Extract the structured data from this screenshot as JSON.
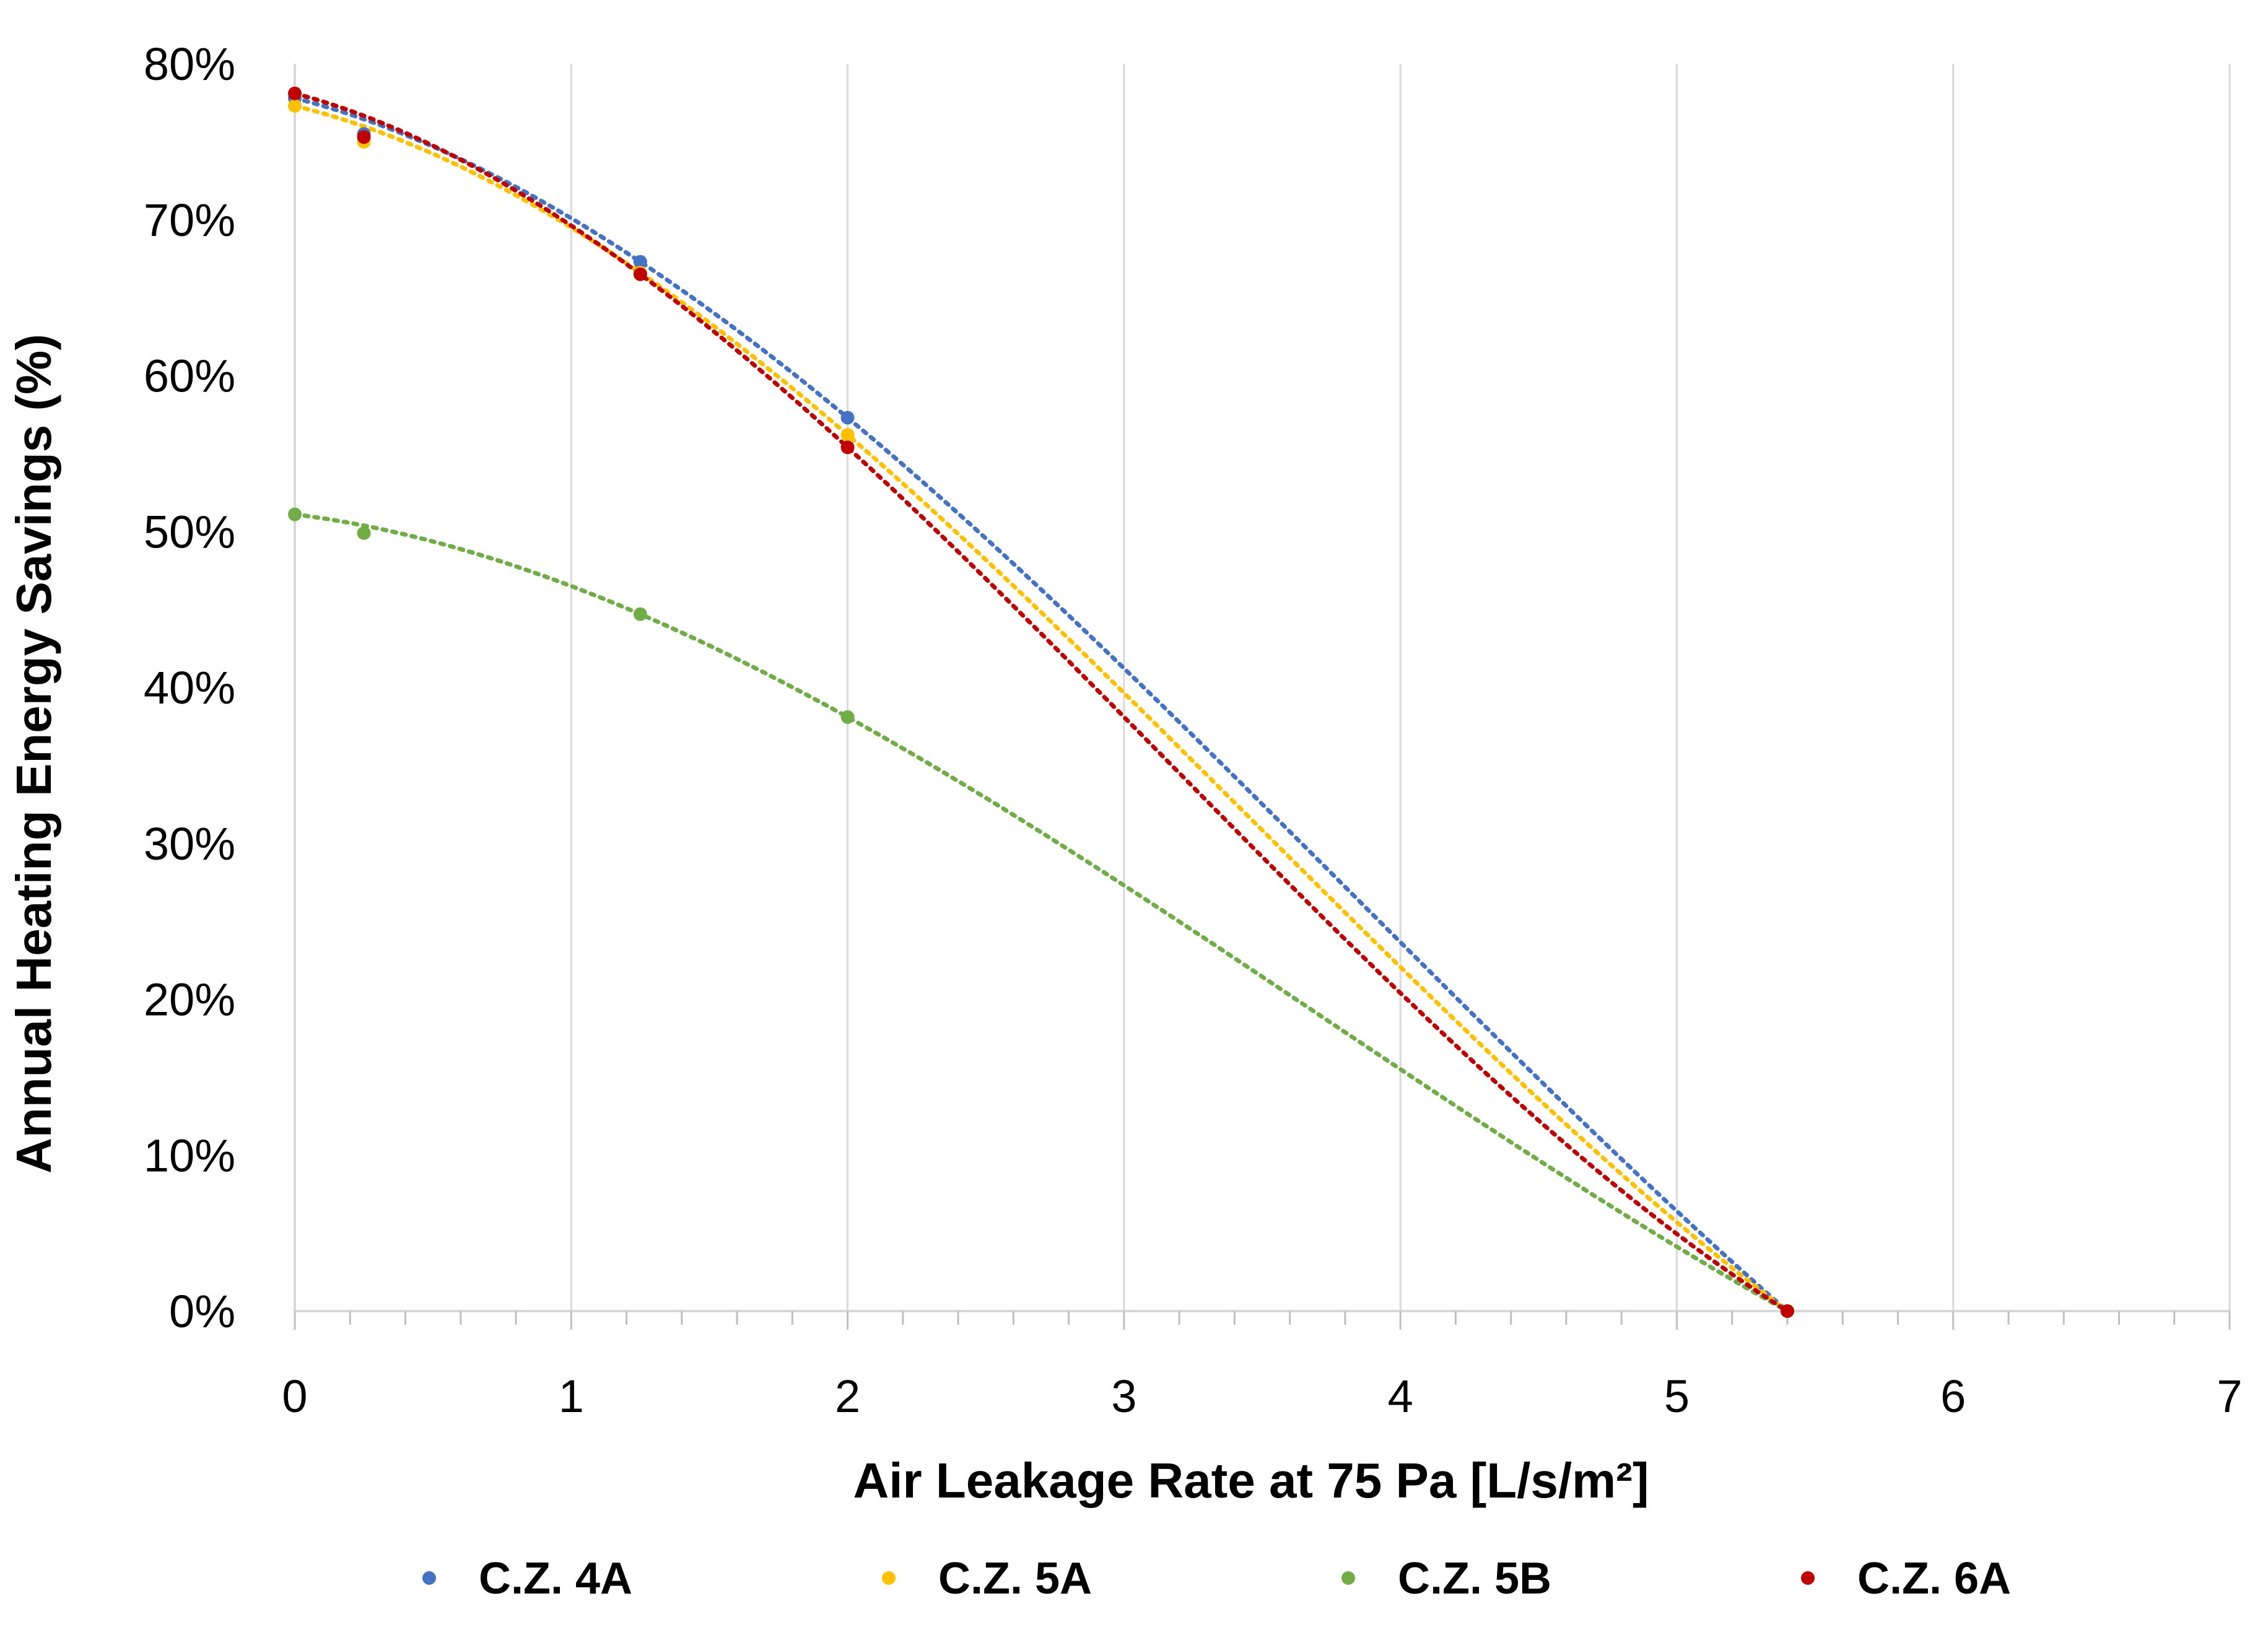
{
  "chart_data": {
    "type": "scatter",
    "title": "",
    "xlabel": "Air Leakage Rate at 75 Pa [L/s/m²]",
    "ylabel": "Annual Heating Energy Savings (%)",
    "xlim": [
      0,
      7
    ],
    "ylim": [
      0,
      80
    ],
    "x_ticks": [
      "0",
      "1",
      "2",
      "3",
      "4",
      "5",
      "6",
      "7"
    ],
    "y_ticks": [
      "0%",
      "10%",
      "20%",
      "30%",
      "40%",
      "50%",
      "60%",
      "70%",
      "80%"
    ],
    "grid": "vertical",
    "trendline": "dotted polynomial",
    "legend_position": "bottom",
    "series": [
      {
        "name": "C.Z. 4A",
        "color": "#4472C4",
        "x": [
          0,
          0.25,
          1.25,
          2,
          5.4
        ],
        "y": [
          77.8,
          75.5,
          67.3,
          57.3,
          0
        ],
        "trend": [
          77.8,
          76.4,
          70.6,
          65.5,
          59.9
        ]
      },
      {
        "name": "C.Z. 5A",
        "color": "#FFC000",
        "x": [
          0,
          0.25,
          1.25,
          2,
          5.4
        ],
        "y": [
          77.3,
          75.0,
          66.6,
          56.2,
          0
        ],
        "trend": [
          76.8,
          76.5,
          70.2,
          64.8,
          59.1
        ]
      },
      {
        "name": "C.Z. 5B",
        "color": "#70AD47",
        "x": [
          0,
          0.25,
          1.25,
          2,
          5.4
        ],
        "y": [
          51.1,
          49.9,
          44.7,
          38.1,
          0
        ],
        "trend": [
          51.3,
          50.1,
          45.5,
          41.4,
          37.7
        ]
      },
      {
        "name": "C.Z. 6A",
        "color": "#C00000",
        "x": [
          0,
          0.25,
          1.25,
          2,
          5.4
        ],
        "y": [
          78.1,
          75.3,
          66.5,
          55.4,
          0
        ],
        "trend": [
          78.3,
          75.9,
          69.2,
          64.0,
          58.7
        ]
      }
    ]
  }
}
